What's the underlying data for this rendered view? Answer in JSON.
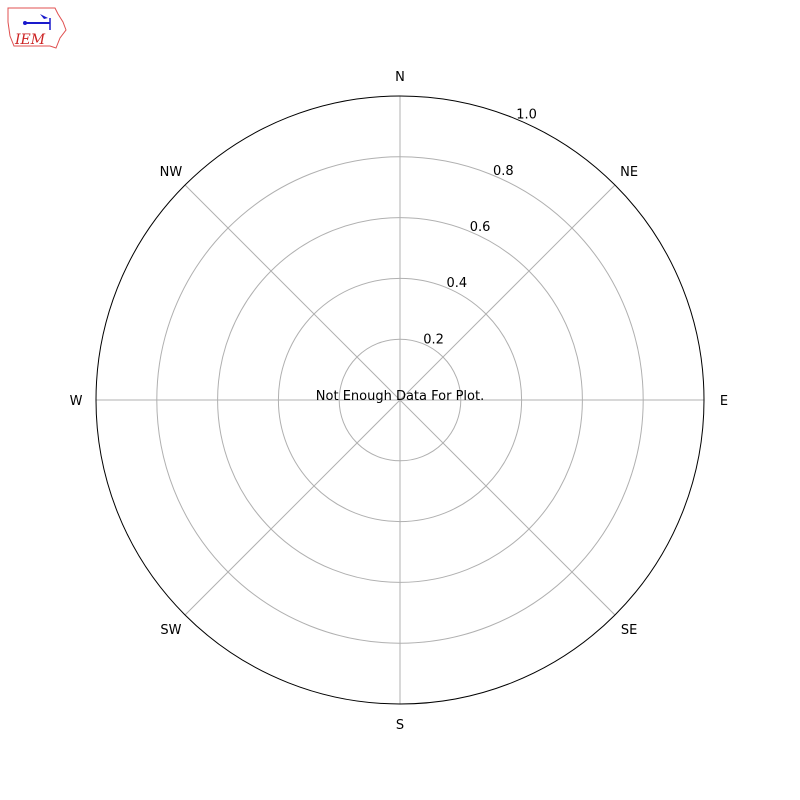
{
  "logo": {
    "text": "IEM",
    "colors": {
      "outline": "#e05050",
      "symbol": "#1a1acc",
      "text": "#cc2222"
    }
  },
  "chart_data": {
    "type": "polar",
    "title": "",
    "message": "Not Enough Data For Plot.",
    "direction_labels": [
      "N",
      "NE",
      "E",
      "SE",
      "S",
      "SW",
      "W",
      "NW"
    ],
    "radial_ticks": [
      0.2,
      0.4,
      0.6,
      0.8,
      1.0
    ],
    "radial_tick_labels": [
      "0.2",
      "0.4",
      "0.6",
      "0.8",
      "1.0"
    ],
    "rlim": [
      0,
      1.0
    ],
    "grid": true,
    "series": [],
    "colors": {
      "grid": "#b0b0b0",
      "frame": "#000000"
    }
  }
}
